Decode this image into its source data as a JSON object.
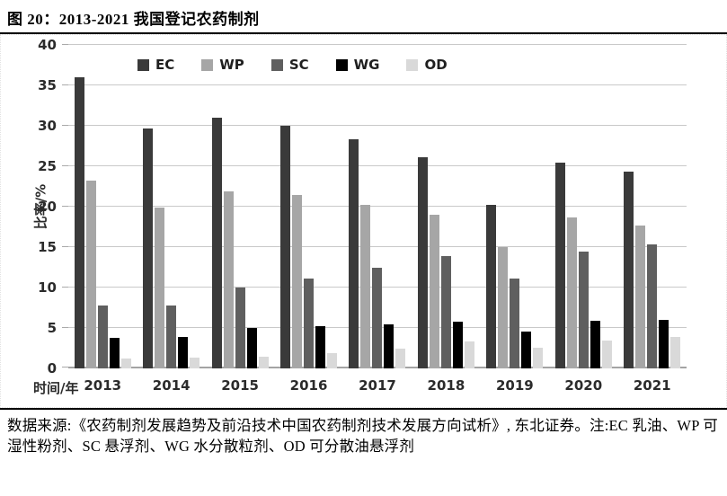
{
  "title": "图 20：2013-2021 我国登记农药制剂",
  "footer": {
    "source_note": "数据来源:《农药制剂发展趋势及前沿技术中国农药制剂技术发展方向试析》, 东北证券。注:EC 乳油、WP 可湿性粉剂、SC 悬浮剂、WG 水分散粒剂、OD 可分散油悬浮剂"
  },
  "chart_data": {
    "type": "bar",
    "title": "图 20：2013-2021 我国登记农药制剂",
    "xlabel": "时间/年",
    "ylabel": "比率/%",
    "ylim": [
      0,
      40
    ],
    "yticks": [
      0,
      5,
      10,
      15,
      20,
      25,
      30,
      35,
      40
    ],
    "grid": true,
    "legend_position": "top-inside",
    "categories": [
      "2013",
      "2014",
      "2015",
      "2016",
      "2017",
      "2018",
      "2019",
      "2020",
      "2021"
    ],
    "series": [
      {
        "name": "EC",
        "color": "#3a3a3a",
        "values": [
          36.0,
          29.7,
          31.0,
          30.0,
          28.3,
          26.1,
          20.2,
          25.4,
          24.3
        ]
      },
      {
        "name": "WP",
        "color": "#a6a6a6",
        "values": [
          23.2,
          19.9,
          21.9,
          21.4,
          20.2,
          19.0,
          15.0,
          18.7,
          17.7
        ]
      },
      {
        "name": "SC",
        "color": "#5f5f5f",
        "values": [
          7.8,
          7.8,
          10.0,
          11.1,
          12.4,
          13.9,
          11.1,
          14.5,
          15.3
        ]
      },
      {
        "name": "WG",
        "color": "#000000",
        "values": [
          3.8,
          3.9,
          5.0,
          5.2,
          5.5,
          5.8,
          4.6,
          5.9,
          6.0
        ]
      },
      {
        "name": "OD",
        "color": "#d9d9d9",
        "values": [
          1.2,
          1.3,
          1.5,
          1.9,
          2.4,
          3.3,
          2.6,
          3.5,
          3.9
        ]
      }
    ]
  }
}
